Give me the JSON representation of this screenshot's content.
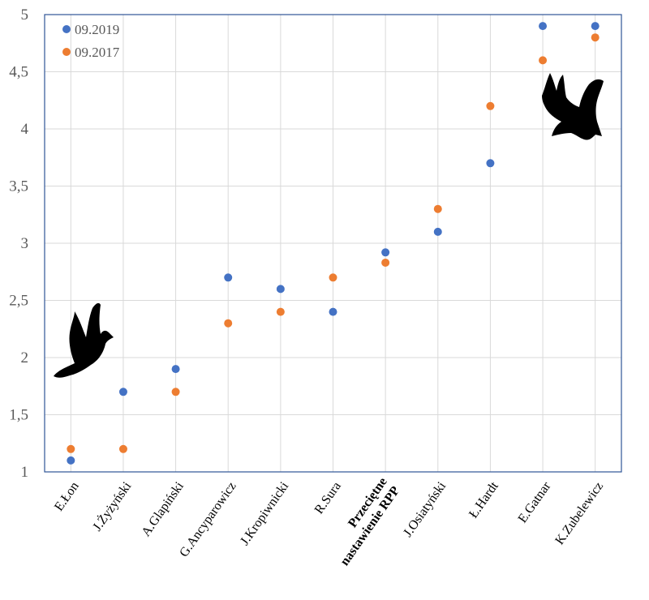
{
  "chart_data": {
    "type": "scatter",
    "categories": [
      "E.Łon",
      "J.Żyżyński",
      "A.Glapiński",
      "G.Ancyparowicz",
      "J.Kropiwnicki",
      "R.Sura",
      "Przeciętne nastawienie RPP",
      "J.Osiatyński",
      "Ł.Hardt",
      "E.Gatnar",
      "K.Zubelewicz"
    ],
    "category_label_lines": [
      [
        "E.Łon"
      ],
      [
        "J.Żyżyński"
      ],
      [
        "A.Glapiński"
      ],
      [
        "G.Ancyparowicz"
      ],
      [
        "J.Kropiwnicki"
      ],
      [
        "R.Sura"
      ],
      [
        "Przeciętne",
        "nastawienie RPP"
      ],
      [
        "J.Osiatyński"
      ],
      [
        "Ł.Hardt"
      ],
      [
        "E.Gatnar"
      ],
      [
        "K.Zubelewicz"
      ]
    ],
    "bold_category_index": 6,
    "series": [
      {
        "name": "09.2019",
        "color": "#4472C4",
        "values": [
          1.1,
          1.7,
          1.9,
          2.7,
          2.6,
          2.4,
          2.92,
          3.1,
          3.7,
          4.9,
          4.9
        ]
      },
      {
        "name": "09.2017",
        "color": "#ED7D31",
        "values": [
          1.2,
          1.2,
          1.7,
          2.3,
          2.4,
          2.7,
          2.83,
          3.3,
          4.2,
          4.6,
          4.8
        ]
      }
    ],
    "ylim": [
      1,
      5
    ],
    "yticks": [
      "1",
      "1,5",
      "2",
      "2,5",
      "3",
      "3,5",
      "4",
      "4,5",
      "5"
    ],
    "ytick_values": [
      1,
      1.5,
      2,
      2.5,
      3,
      3.5,
      4,
      4.5,
      5
    ],
    "grid": true,
    "legend_position": "top-left",
    "title": "",
    "xlabel": "",
    "ylabel": "",
    "icons": [
      {
        "name": "dove-icon",
        "at": "low-left"
      },
      {
        "name": "eagle-icon",
        "at": "high-right"
      }
    ]
  }
}
